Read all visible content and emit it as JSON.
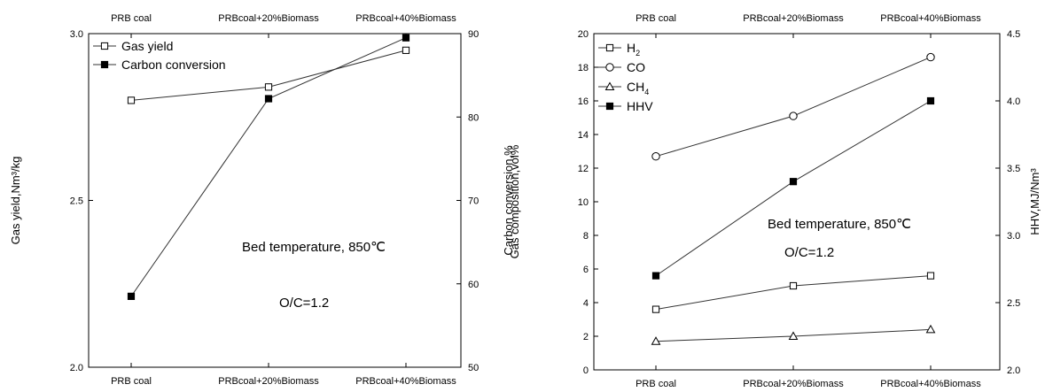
{
  "chart_data": [
    {
      "type": "line",
      "categories": [
        "PRB coal",
        "PRBcoal+20%Biomass",
        "PRBcoal+40%Biomass"
      ],
      "ylabel": "Gas yield,Nm³/kg",
      "ylim": [
        2.0,
        3.0
      ],
      "yticks": [
        "2.0",
        "2.5",
        "3.0"
      ],
      "y2label": "Carbon conversion,%",
      "y2lim": [
        50,
        90
      ],
      "y2ticks": [
        "50",
        "60",
        "70",
        "80",
        "90"
      ],
      "legend_position": "top-left",
      "series": [
        {
          "name": "Gas yield",
          "axis": "left",
          "marker": "open-square",
          "values": [
            2.8,
            2.84,
            2.95
          ]
        },
        {
          "name": "Carbon conversion",
          "axis": "right",
          "marker": "filled-square",
          "values": [
            58.5,
            82.2,
            89.5
          ]
        }
      ],
      "annotations": [
        "Bed temperature,  850℃",
        "O/C=1.2"
      ]
    },
    {
      "type": "line",
      "categories": [
        "PRB coal",
        "PRBcoal+20%Biomass",
        "PRBcoal+40%Biomass"
      ],
      "ylabel": "Gas composition,vol%",
      "ylim": [
        0,
        20
      ],
      "yticks": [
        "0",
        "2",
        "4",
        "6",
        "8",
        "10",
        "12",
        "14",
        "16",
        "18",
        "20"
      ],
      "y2label": "HHV,MJ/Nm³",
      "y2lim": [
        2.0,
        4.5
      ],
      "y2ticks": [
        "2.0",
        "2.5",
        "3.0",
        "3.5",
        "4.0",
        "4.5"
      ],
      "legend_position": "top-left",
      "series": [
        {
          "name": "H2",
          "name_main": "H",
          "name_sub": "2",
          "axis": "left",
          "marker": "open-square",
          "values": [
            3.6,
            5.0,
            5.6
          ]
        },
        {
          "name": "CO",
          "name_main": "CO",
          "name_sub": "",
          "axis": "left",
          "marker": "open-circle",
          "values": [
            12.7,
            15.1,
            18.6
          ]
        },
        {
          "name": "CH4",
          "name_main": "CH",
          "name_sub": "4",
          "axis": "left",
          "marker": "open-triangle",
          "values": [
            1.7,
            2.0,
            2.4
          ]
        },
        {
          "name": "HHV",
          "name_main": "HHV",
          "name_sub": "",
          "axis": "right",
          "marker": "filled-square",
          "values": [
            2.7,
            3.4,
            4.0
          ]
        }
      ],
      "annotations": [
        "Bed temperature,  850℃",
        "O/C=1.2"
      ]
    }
  ]
}
